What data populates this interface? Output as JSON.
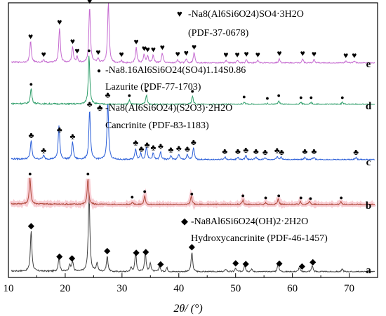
{
  "chart_data": {
    "type": "line",
    "xlabel": "2θ/ (°)",
    "xlim": [
      10,
      75
    ],
    "x_ticks": [
      10,
      20,
      30,
      40,
      50,
      60,
      70
    ],
    "y_axis_ticks_labeled": false,
    "grid": false,
    "series": [
      {
        "key": "a",
        "label": "a",
        "color": "#404040",
        "phase_name": "-Na8Al6Si6O24(OH)2·2H2O",
        "phase_ref": "Hydroxycancrinite (PDF-46-1457)",
        "marker": "diamond",
        "marker_symbol": "◆",
        "marker_positions": [
          14.0,
          19.0,
          21.2,
          27.4,
          32.5,
          34.2,
          36.8,
          42.3,
          50.0,
          51.8,
          57.7,
          61.7,
          63.6
        ],
        "peaks": [
          [
            14.0,
            58
          ],
          [
            18.9,
            20
          ],
          [
            20.8,
            10
          ],
          [
            21.3,
            14
          ],
          [
            24.2,
            115
          ],
          [
            25.6,
            12
          ],
          [
            27.4,
            22
          ],
          [
            31.6,
            6
          ],
          [
            32.4,
            27
          ],
          [
            34.1,
            28
          ],
          [
            35.0,
            12
          ],
          [
            36.6,
            8
          ],
          [
            37.9,
            6
          ],
          [
            42.3,
            28
          ],
          [
            48.3,
            4
          ],
          [
            50.0,
            5
          ],
          [
            51.6,
            10
          ],
          [
            52.8,
            4
          ],
          [
            57.5,
            12
          ],
          [
            61.2,
            6
          ],
          [
            63.5,
            9
          ],
          [
            68.8,
            4
          ]
        ]
      },
      {
        "key": "b",
        "label": "b",
        "color": "#b04a3c",
        "phase_name": "",
        "phase_ref": "",
        "marker": "dot",
        "marker_symbol": "●",
        "marker_positions": [
          13.8,
          24.0,
          31.8,
          34.0,
          42.3,
          51.3,
          55.3,
          57.6,
          61.5,
          63.2,
          68.6
        ],
        "peaks": [
          [
            13.8,
            37
          ],
          [
            24.0,
            37
          ],
          [
            31.8,
            4
          ],
          [
            34.0,
            12
          ],
          [
            42.2,
            12
          ],
          [
            51.3,
            6
          ],
          [
            55.3,
            3
          ],
          [
            57.5,
            8
          ],
          [
            61.4,
            4
          ],
          [
            63.0,
            5
          ],
          [
            68.5,
            4
          ]
        ]
      },
      {
        "key": "c",
        "label": "c",
        "color": "#2a5ed8",
        "phase_name": "-Na8(Al6Si6O24)(S2O3)·2H2O",
        "phase_ref": "Cancrinite (PDF-83-1183)",
        "marker": "club",
        "marker_symbol": "♣",
        "marker_positions": [
          14.0,
          16.2,
          19.0,
          21.3,
          24.3,
          27.5,
          32.4,
          33.4,
          34.4,
          35.5,
          36.8,
          38.6,
          40.0,
          41.5,
          42.6,
          48.1,
          50.4,
          51.8,
          53.6,
          55.2,
          57.3,
          58.1,
          62.2,
          63.8,
          71.2
        ],
        "peaks": [
          [
            14.0,
            27
          ],
          [
            16.2,
            5
          ],
          [
            18.9,
            48
          ],
          [
            21.3,
            25
          ],
          [
            24.3,
            71
          ],
          [
            27.5,
            84
          ],
          [
            32.4,
            16
          ],
          [
            33.3,
            9
          ],
          [
            34.3,
            18
          ],
          [
            35.5,
            9
          ],
          [
            36.8,
            11
          ],
          [
            38.6,
            6
          ],
          [
            40.0,
            8
          ],
          [
            41.5,
            7
          ],
          [
            42.6,
            17
          ],
          [
            48.1,
            4
          ],
          [
            50.4,
            4
          ],
          [
            51.8,
            6
          ],
          [
            53.6,
            4
          ],
          [
            55.2,
            3
          ],
          [
            57.3,
            5
          ],
          [
            58.0,
            4
          ],
          [
            62.2,
            4
          ],
          [
            63.8,
            4
          ],
          [
            71.2,
            3
          ]
        ]
      },
      {
        "key": "d",
        "label": "d",
        "color": "#2f9e6a",
        "phase_name": "-Na8.16Al6Si6O24(SO4)1.14S0.86",
        "phase_ref": "Lazurite (PDF-77-1703)",
        "marker": "dot",
        "marker_symbol": "●",
        "marker_positions": [
          14.0,
          24.2,
          31.3,
          34.3,
          42.4,
          51.5,
          55.6,
          57.6,
          61.5,
          63.3,
          68.8
        ],
        "peaks": [
          [
            14.0,
            22
          ],
          [
            24.2,
            70
          ],
          [
            31.3,
            6
          ],
          [
            34.3,
            13
          ],
          [
            42.4,
            12
          ],
          [
            51.5,
            4
          ],
          [
            55.6,
            2
          ],
          [
            57.6,
            6
          ],
          [
            61.5,
            3
          ],
          [
            63.3,
            3
          ],
          [
            68.8,
            3
          ]
        ]
      },
      {
        "key": "e",
        "label": "e",
        "color": "#c56ad0",
        "phase_name": "-Na8(Al6Si6O24)SO4·3H2O",
        "phase_ref": "(PDF-37-0678)",
        "marker": "heart",
        "marker_symbol": "♥",
        "marker_positions": [
          13.9,
          16.2,
          19.0,
          21.3,
          22.1,
          24.3,
          25.8,
          27.6,
          29.9,
          32.5,
          33.9,
          34.5,
          35.5,
          37.1,
          39.8,
          41.3,
          42.7,
          48.3,
          50.3,
          51.9,
          53.9,
          57.7,
          61.8,
          63.8,
          69.4,
          70.9
        ],
        "peaks": [
          [
            13.9,
            30
          ],
          [
            16.2,
            4
          ],
          [
            19.0,
            50
          ],
          [
            21.3,
            22
          ],
          [
            22.1,
            8
          ],
          [
            24.3,
            80
          ],
          [
            25.8,
            6
          ],
          [
            27.6,
            87
          ],
          [
            29.9,
            4
          ],
          [
            32.5,
            22
          ],
          [
            33.9,
            12
          ],
          [
            34.5,
            10
          ],
          [
            35.5,
            11
          ],
          [
            37.1,
            14
          ],
          [
            39.8,
            5
          ],
          [
            41.3,
            6
          ],
          [
            42.7,
            15
          ],
          [
            48.3,
            4
          ],
          [
            50.3,
            4
          ],
          [
            51.9,
            5
          ],
          [
            53.9,
            4
          ],
          [
            57.7,
            6
          ],
          [
            61.8,
            6
          ],
          [
            63.8,
            5
          ],
          [
            69.4,
            3
          ],
          [
            70.9,
            3
          ]
        ]
      }
    ]
  }
}
